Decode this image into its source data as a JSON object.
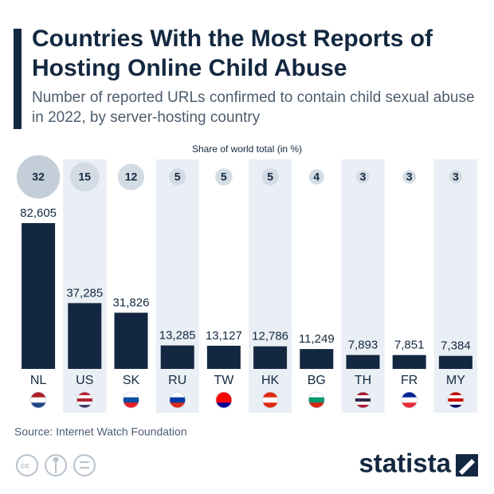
{
  "chart_data": {
    "type": "bar",
    "title": "Countries With the Most Reports of Hosting Online Child Abuse",
    "subtitle": "Number of reported URLs confirmed to contain child sexual abuse in 2022, by server-hosting country",
    "share_label": "Share of world total (in %)",
    "categories": [
      "NL",
      "US",
      "SK",
      "RU",
      "TW",
      "HK",
      "BG",
      "TH",
      "FR",
      "MY"
    ],
    "values": [
      82605,
      37285,
      31826,
      13285,
      13127,
      12786,
      11249,
      7893,
      7851,
      7384
    ],
    "value_labels": [
      "82,605",
      "37,285",
      "31,826",
      "13,285",
      "13,127",
      "12,786",
      "11,249",
      "7,893",
      "7,851",
      "7,384"
    ],
    "shares": [
      32,
      15,
      12,
      5,
      5,
      5,
      4,
      3,
      3,
      3
    ],
    "color": "#132840",
    "source": "Source: Internet Watch Foundation",
    "brand": "statista"
  }
}
